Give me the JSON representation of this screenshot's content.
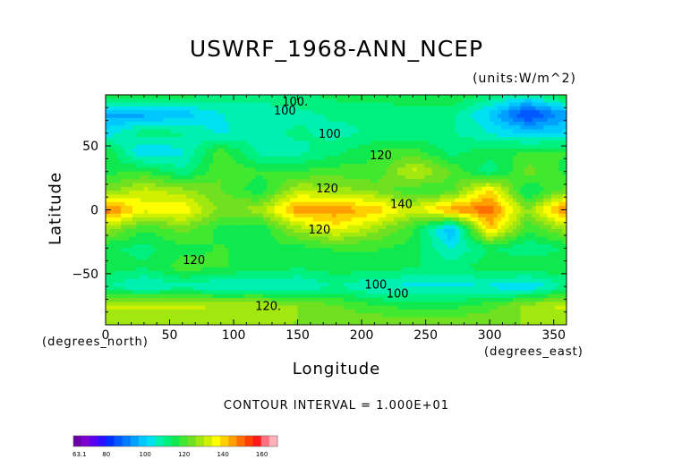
{
  "chart_data": {
    "type": "heatmap",
    "title": "USWRF_1968-ANN_NCEP",
    "units_label": "(units:W/m^2)",
    "xlabel": "Longitude",
    "xunit_label": "(degrees_east)",
    "ylabel": "Latitude",
    "yunit_label": "(degrees_north)",
    "xlim": [
      0,
      360
    ],
    "ylim": [
      -90,
      90
    ],
    "x_ticks": [
      0,
      50,
      100,
      150,
      200,
      250,
      300,
      350
    ],
    "x_tick_labels": [
      "0",
      "50",
      "100",
      "150",
      "200",
      "250",
      "300",
      "350"
    ],
    "y_ticks": [
      50,
      0,
      -50
    ],
    "y_tick_labels": [
      "50",
      "0",
      "−50"
    ],
    "contour_interval_text": "CONTOUR INTERVAL = 1.000E+01",
    "contour_labels": [
      {
        "text": "100.",
        "lon": 148,
        "lat": 85
      },
      {
        "text": "100",
        "lon": 140,
        "lat": 78
      },
      {
        "text": "100",
        "lon": 175,
        "lat": 60
      },
      {
        "text": "120",
        "lon": 215,
        "lat": 43
      },
      {
        "text": "120",
        "lon": 173,
        "lat": 17
      },
      {
        "text": "140",
        "lon": 231,
        "lat": 5
      },
      {
        "text": "120",
        "lon": 167,
        "lat": -15
      },
      {
        "text": "120",
        "lon": 69,
        "lat": -39
      },
      {
        "text": "100",
        "lon": 211,
        "lat": -58
      },
      {
        "text": "100",
        "lon": 228,
        "lat": -65
      },
      {
        "text": "120.",
        "lon": 127,
        "lat": -75
      }
    ],
    "grid_lon": [
      0,
      30,
      60,
      90,
      120,
      150,
      180,
      210,
      240,
      270,
      300,
      330,
      360
    ],
    "grid_lat": [
      90,
      75,
      60,
      45,
      30,
      15,
      0,
      -15,
      -30,
      -45,
      -60,
      -75,
      -90
    ],
    "values": [
      [
        118,
        118,
        116,
        112,
        110,
        112,
        115,
        116,
        116,
        118,
        112,
        108,
        118
      ],
      [
        95,
        95,
        98,
        105,
        108,
        108,
        110,
        110,
        112,
        110,
        100,
        82,
        95
      ],
      [
        102,
        112,
        110,
        104,
        108,
        110,
        108,
        110,
        110,
        110,
        105,
        100,
        102
      ],
      [
        118,
        100,
        104,
        120,
        108,
        108,
        112,
        118,
        120,
        112,
        116,
        118,
        118
      ],
      [
        116,
        118,
        110,
        122,
        118,
        118,
        120,
        118,
        132,
        122,
        110,
        124,
        116
      ],
      [
        124,
        132,
        128,
        122,
        115,
        130,
        128,
        125,
        118,
        120,
        140,
        112,
        124
      ],
      [
        150,
        136,
        138,
        125,
        128,
        146,
        146,
        142,
        132,
        146,
        150,
        126,
        150
      ],
      [
        128,
        118,
        124,
        116,
        114,
        128,
        136,
        128,
        118,
        96,
        142,
        118,
        128
      ],
      [
        114,
        112,
        116,
        118,
        116,
        116,
        118,
        118,
        116,
        104,
        114,
        110,
        114
      ],
      [
        116,
        114,
        120,
        118,
        116,
        114,
        116,
        116,
        114,
        112,
        116,
        118,
        116
      ],
      [
        110,
        104,
        108,
        104,
        106,
        104,
        110,
        104,
        104,
        104,
        104,
        100,
        110
      ],
      [
        132,
        132,
        132,
        130,
        130,
        126,
        122,
        118,
        116,
        116,
        120,
        128,
        132
      ],
      [
        126,
        126,
        126,
        126,
        126,
        126,
        126,
        126,
        126,
        126,
        126,
        126,
        126
      ]
    ],
    "colorbar": {
      "min_label": "63.1",
      "tick_labels": [
        "80",
        "100",
        "120",
        "140",
        "160"
      ],
      "tick_values": [
        80,
        100,
        120,
        140,
        160
      ],
      "range": [
        63.1,
        168
      ],
      "colors": [
        "#6c00a8",
        "#7c00d0",
        "#5a00f0",
        "#2a10ff",
        "#0030ff",
        "#0058ff",
        "#007cff",
        "#00a0ff",
        "#00c8ff",
        "#00e0f0",
        "#00f0b0",
        "#00f080",
        "#10e850",
        "#40e830",
        "#70e020",
        "#a0e810",
        "#d0f000",
        "#ffff00",
        "#ffd000",
        "#ffa000",
        "#ff7000",
        "#ff4000",
        "#ff1a1a",
        "#ff7080",
        "#ffb0b8"
      ]
    }
  }
}
